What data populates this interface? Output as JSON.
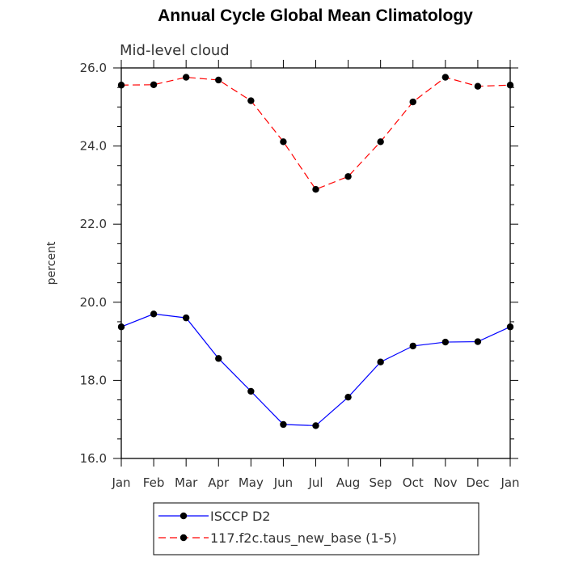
{
  "chart_data": {
    "type": "line",
    "title": "Annual Cycle Global Mean Climatology",
    "subtitle": "Mid-level cloud",
    "ylabel": "percent",
    "xlabel": "",
    "ylim": [
      16.0,
      26.0
    ],
    "yticks": [
      "16.0",
      "18.0",
      "20.0",
      "22.0",
      "24.0",
      "26.0"
    ],
    "categories": [
      "Jan",
      "Feb",
      "Mar",
      "Apr",
      "May",
      "Jun",
      "Jul",
      "Aug",
      "Sep",
      "Oct",
      "Nov",
      "Dec",
      "Jan"
    ],
    "series": [
      {
        "name": "ISCCP D2",
        "color": "#0000ff",
        "dash": "solid",
        "values": [
          19.37,
          19.7,
          19.6,
          18.56,
          17.72,
          16.87,
          16.84,
          17.57,
          18.47,
          18.88,
          18.98,
          18.99,
          19.37
        ]
      },
      {
        "name": "117.f2c.taus_new_base (1-5)",
        "color": "#ff0000",
        "dash": "dashed",
        "values": [
          25.56,
          25.57,
          25.76,
          25.69,
          25.16,
          24.11,
          22.89,
          23.22,
          24.11,
          25.13,
          25.76,
          25.53,
          25.56
        ]
      }
    ],
    "grid": false,
    "legend": "bottom-center"
  }
}
